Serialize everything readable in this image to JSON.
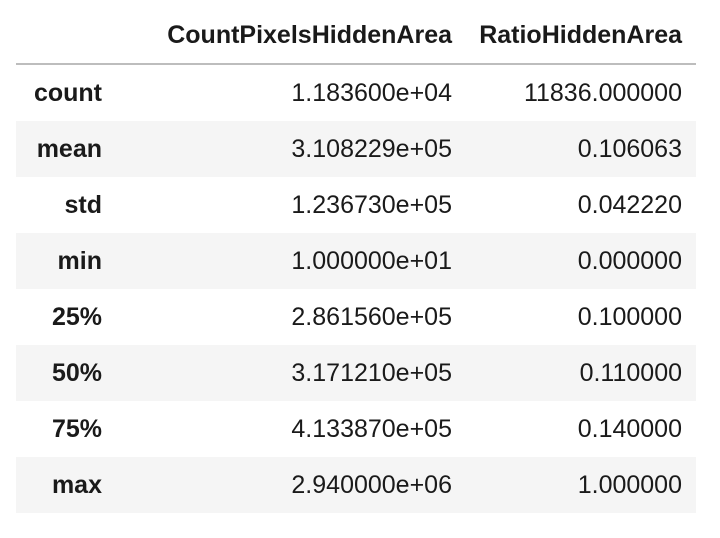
{
  "table": {
    "columns": [
      "",
      "CountPixelsHiddenArea",
      "RatioHiddenArea"
    ],
    "rows": [
      {
        "label": "count",
        "values": [
          "1.183600e+04",
          "11836.000000"
        ]
      },
      {
        "label": "mean",
        "values": [
          "3.108229e+05",
          "0.106063"
        ]
      },
      {
        "label": "std",
        "values": [
          "1.236730e+05",
          "0.042220"
        ]
      },
      {
        "label": "min",
        "values": [
          "1.000000e+01",
          "0.000000"
        ]
      },
      {
        "label": "25%",
        "values": [
          "2.861560e+05",
          "0.100000"
        ]
      },
      {
        "label": "50%",
        "values": [
          "3.171210e+05",
          "0.110000"
        ]
      },
      {
        "label": "75%",
        "values": [
          "4.133870e+05",
          "0.140000"
        ]
      },
      {
        "label": "max",
        "values": [
          "2.940000e+06",
          "1.000000"
        ]
      }
    ]
  },
  "colors": {
    "text": "#1a1a1a",
    "stripe": "#f5f5f5",
    "header_rule": "#bdbdbd",
    "background": "#ffffff"
  }
}
